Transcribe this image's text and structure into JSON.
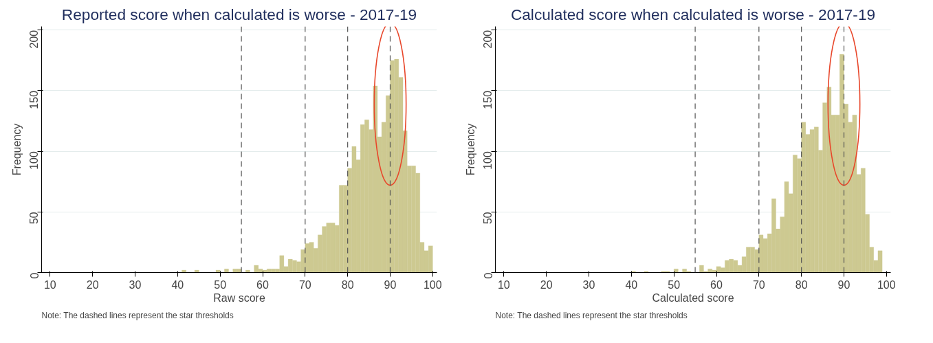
{
  "chart_data": [
    {
      "type": "histogram",
      "title": "Reported score when calculated is worse - 2017-19",
      "xlabel": "Raw score",
      "ylabel": "Frequency",
      "bins": [
        40,
        41,
        42,
        43,
        44,
        45,
        46,
        47,
        48,
        49,
        50,
        51,
        52,
        53,
        54,
        55,
        56,
        57,
        58,
        59,
        60,
        61,
        62,
        63,
        64,
        65,
        66,
        67,
        68,
        69,
        70,
        71,
        72,
        73,
        74,
        75,
        76,
        77,
        78,
        79,
        80,
        81,
        82,
        83,
        84,
        85,
        86,
        87,
        88,
        89,
        90,
        91,
        92,
        93,
        94,
        95,
        96,
        97,
        98,
        99,
        100
      ],
      "values": [
        0,
        2,
        0,
        0,
        2,
        0,
        0,
        0,
        0,
        2,
        0,
        3,
        0,
        3,
        3,
        0,
        2,
        0,
        6,
        3,
        2,
        3,
        3,
        3,
        14,
        5,
        11,
        10,
        9,
        19,
        24,
        25,
        20,
        31,
        38,
        41,
        41,
        39,
        72,
        72,
        86,
        104,
        93,
        122,
        126,
        118,
        154,
        112,
        124,
        146,
        175,
        176,
        161,
        117,
        88,
        88,
        82,
        25,
        18,
        22
      ],
      "color": "#cdc991",
      "xlim": [
        8,
        101
      ],
      "ylim": [
        0,
        203
      ],
      "xticks": [
        10,
        20,
        30,
        40,
        50,
        60,
        70,
        80,
        90,
        100
      ],
      "yticks": [
        0,
        50,
        100,
        150,
        200
      ],
      "grid": "y",
      "ref_lines": [
        {
          "axis": "x",
          "value": 55,
          "line_style": "dashed"
        },
        {
          "axis": "x",
          "value": 70,
          "line_style": "dashed"
        },
        {
          "axis": "x",
          "value": 80,
          "line_style": "dashed"
        },
        {
          "axis": "x",
          "value": 90,
          "line_style": "dashed"
        }
      ],
      "annotations": [
        "Note: The dashed lines represent the star thresholds"
      ]
    },
    {
      "type": "histogram",
      "title": "Calculated score when calculated is worse - 2017-19",
      "xlabel": "Calculated score",
      "ylabel": "Frequency",
      "bins": [
        40,
        41,
        42,
        43,
        44,
        45,
        46,
        47,
        48,
        49,
        50,
        51,
        52,
        53,
        54,
        55,
        56,
        57,
        58,
        59,
        60,
        61,
        62,
        63,
        64,
        65,
        66,
        67,
        68,
        69,
        70,
        71,
        72,
        73,
        74,
        75,
        76,
        77,
        78,
        79,
        80,
        81,
        82,
        83,
        84,
        85,
        86,
        87,
        88,
        89,
        90,
        91,
        92,
        93,
        94,
        95,
        96,
        97,
        98,
        99
      ],
      "values": [
        1,
        0,
        0,
        1,
        0,
        0,
        0,
        1,
        1,
        0,
        3,
        0,
        3,
        1,
        0,
        0,
        6,
        1,
        3,
        2,
        5,
        4,
        10,
        11,
        10,
        6,
        13,
        21,
        21,
        19,
        31,
        28,
        32,
        61,
        36,
        46,
        75,
        65,
        97,
        94,
        124,
        114,
        118,
        120,
        101,
        140,
        153,
        130,
        130,
        180,
        139,
        124,
        130,
        81,
        86,
        48,
        21,
        10,
        18
      ],
      "color": "#cdc991",
      "xlim": [
        8,
        101
      ],
      "ylim": [
        0,
        203
      ],
      "xticks": [
        10,
        20,
        30,
        40,
        50,
        60,
        70,
        80,
        90,
        100
      ],
      "yticks": [
        0,
        50,
        100,
        150,
        200
      ],
      "grid": "y",
      "ref_lines": [
        {
          "axis": "x",
          "value": 55,
          "line_style": "dashed"
        },
        {
          "axis": "x",
          "value": 70,
          "line_style": "dashed"
        },
        {
          "axis": "x",
          "value": 80,
          "line_style": "dashed"
        },
        {
          "axis": "x",
          "value": 90,
          "line_style": "dashed"
        }
      ],
      "annotations": [
        "Note: The dashed lines represent the star thresholds"
      ]
    }
  ]
}
